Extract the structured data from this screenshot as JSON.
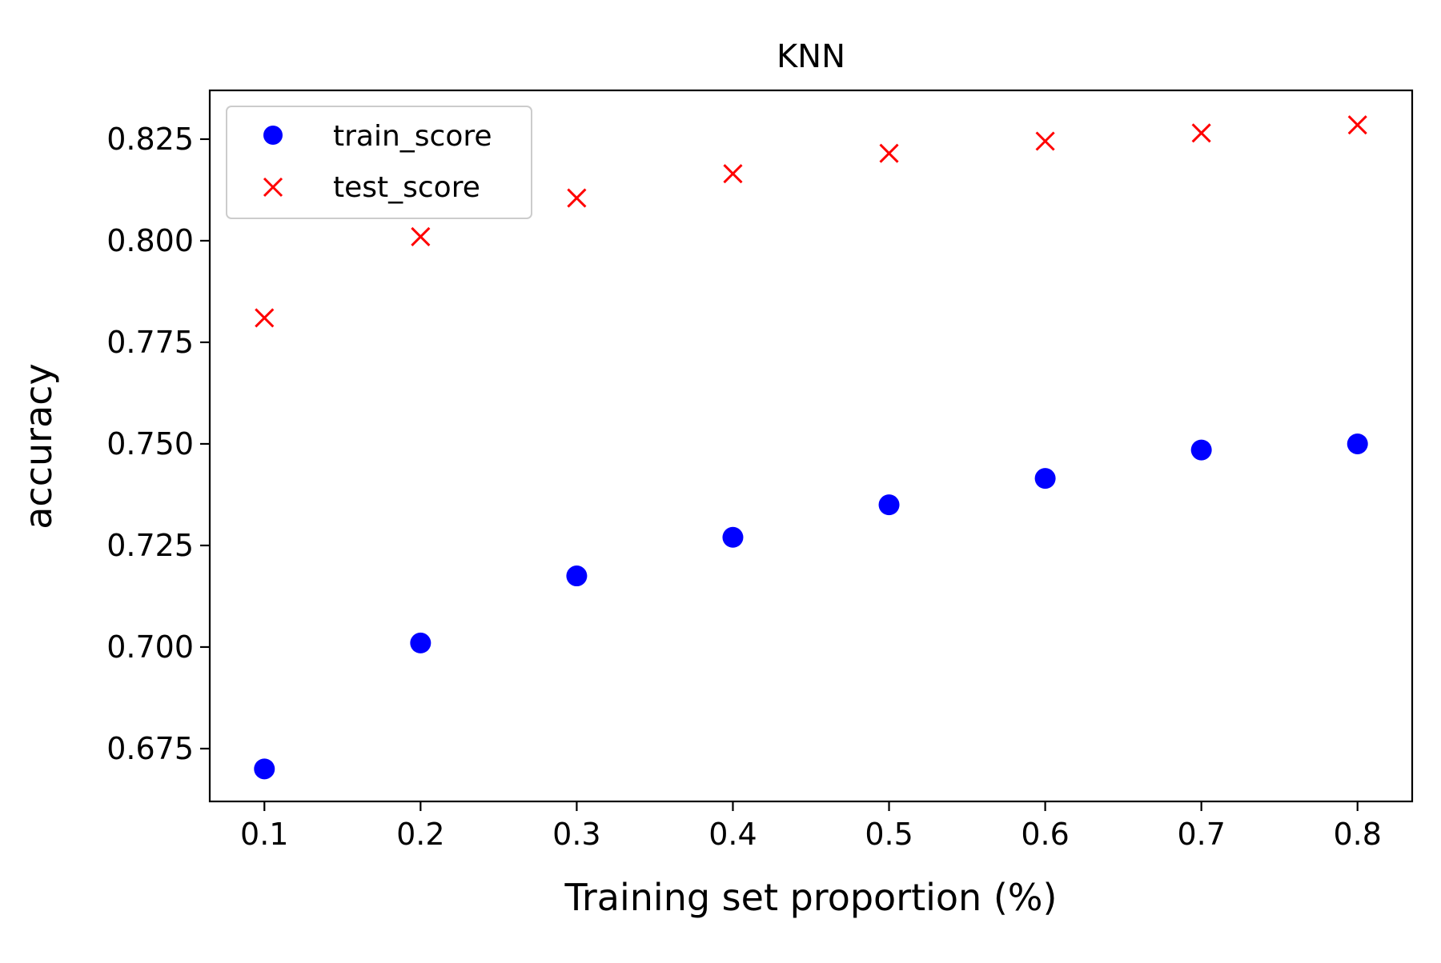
{
  "chart_data": {
    "type": "scatter",
    "title": "KNN",
    "xlabel": "Training set proportion (%)",
    "ylabel": "accuracy",
    "x": [
      0.1,
      0.2,
      0.3,
      0.4,
      0.5,
      0.6,
      0.7,
      0.8
    ],
    "xlim": [
      0.065,
      0.835
    ],
    "ylim": [
      0.662,
      0.837
    ],
    "x_ticks": [
      0.1,
      0.2,
      0.3,
      0.4,
      0.5,
      0.6,
      0.7,
      0.8
    ],
    "x_tick_labels": [
      "0.1",
      "0.2",
      "0.3",
      "0.4",
      "0.5",
      "0.6",
      "0.7",
      "0.8"
    ],
    "y_ticks": [
      0.675,
      0.7,
      0.725,
      0.75,
      0.775,
      0.8,
      0.825
    ],
    "y_tick_labels": [
      "0.675",
      "0.700",
      "0.725",
      "0.750",
      "0.775",
      "0.800",
      "0.825"
    ],
    "grid": false,
    "legend_position": "top-left",
    "series": [
      {
        "name": "train_score",
        "marker": "circle",
        "color": "#0000ff",
        "values": [
          0.67,
          0.701,
          0.7175,
          0.727,
          0.735,
          0.7415,
          0.7485,
          0.75
        ]
      },
      {
        "name": "test_score",
        "marker": "x",
        "color": "#ff0000",
        "values": [
          0.781,
          0.801,
          0.8105,
          0.8165,
          0.8215,
          0.8245,
          0.8265,
          0.8285
        ]
      }
    ]
  }
}
